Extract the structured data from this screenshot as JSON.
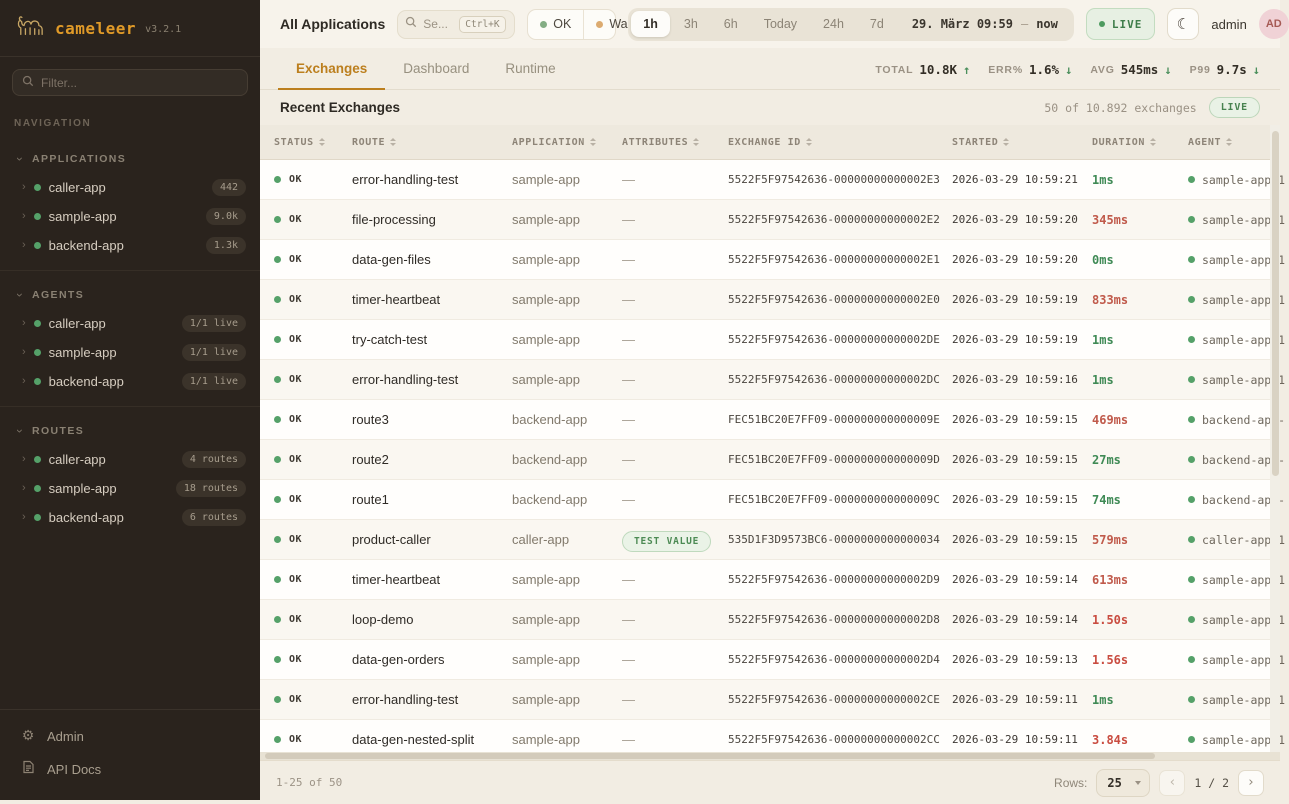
{
  "app": {
    "name": "cameleer",
    "version": "v3.2.1"
  },
  "colors": {
    "accent_orange": "#e09a28",
    "ok_green": "#55a169",
    "warn_amber": "#dcab70",
    "live_green": "#3e7d4a",
    "duration": {
      "fast": "#3f8a55",
      "medium": "#c05a4b",
      "slow": "#c94c40"
    }
  },
  "sidebar": {
    "filter_placeholder": "Filter...",
    "nav_label": "NAVIGATION",
    "sections": [
      {
        "label": "APPLICATIONS",
        "items": [
          {
            "name": "caller-app",
            "badge": "442"
          },
          {
            "name": "sample-app",
            "badge": "9.0k"
          },
          {
            "name": "backend-app",
            "badge": "1.3k"
          }
        ]
      },
      {
        "label": "AGENTS",
        "items": [
          {
            "name": "caller-app",
            "badge": "1/1 live"
          },
          {
            "name": "sample-app",
            "badge": "1/1 live"
          },
          {
            "name": "backend-app",
            "badge": "1/1 live"
          }
        ]
      },
      {
        "label": "ROUTES",
        "items": [
          {
            "name": "caller-app",
            "badge": "4 routes"
          },
          {
            "name": "sample-app",
            "badge": "18 routes"
          },
          {
            "name": "backend-app",
            "badge": "6 routes"
          }
        ]
      }
    ],
    "footer_items": [
      {
        "label": "Admin"
      },
      {
        "label": "API Docs"
      }
    ]
  },
  "topbar": {
    "scope_title": "All Applications",
    "search": {
      "placeholder": "Se...",
      "shortcut": "Ctrl+K"
    },
    "status_filters": [
      {
        "label": "OK",
        "color": "#84ad84"
      },
      {
        "label": "Wa",
        "color": "#dcab70"
      }
    ],
    "time_ranges": [
      "1h",
      "3h",
      "6h",
      "Today",
      "24h",
      "7d"
    ],
    "active_range": "1h",
    "date_range": {
      "from": "29. März 09:59",
      "sep": "—",
      "to": "now"
    },
    "live_label": "LIVE",
    "user": {
      "name": "admin",
      "initials": "AD"
    }
  },
  "tabs": [
    {
      "label": "Exchanges",
      "active": true
    },
    {
      "label": "Dashboard",
      "active": false
    },
    {
      "label": "Runtime",
      "active": false
    }
  ],
  "stats": [
    {
      "label": "TOTAL",
      "value": "10.8K",
      "dir": "up"
    },
    {
      "label": "ERR%",
      "value": "1.6%",
      "dir": "down"
    },
    {
      "label": "AVG",
      "value": "545ms",
      "dir": "down"
    },
    {
      "label": "P99",
      "value": "9.7s",
      "dir": "down"
    }
  ],
  "exchanges": {
    "title": "Recent Exchanges",
    "count_text": "50 of 10.892 exchanges",
    "live_label": "LIVE",
    "empty_attribute": "—",
    "columns": [
      "STATUS",
      "ROUTE",
      "APPLICATION",
      "ATTRIBUTES",
      "EXCHANGE ID",
      "STARTED",
      "DURATION",
      "AGENT"
    ],
    "rows": [
      {
        "status": "OK",
        "route": "error-handling-test",
        "application": "sample-app",
        "attribute": null,
        "exchange_id": "5522F5F97542636-00000000000002E3",
        "started": "2026-03-29 10:59:21",
        "duration": "1ms",
        "level": "fast",
        "agent": "sample-app-1"
      },
      {
        "status": "OK",
        "route": "file-processing",
        "application": "sample-app",
        "attribute": null,
        "exchange_id": "5522F5F97542636-00000000000002E2",
        "started": "2026-03-29 10:59:20",
        "duration": "345ms",
        "level": "medium",
        "agent": "sample-app-1"
      },
      {
        "status": "OK",
        "route": "data-gen-files",
        "application": "sample-app",
        "attribute": null,
        "exchange_id": "5522F5F97542636-00000000000002E1",
        "started": "2026-03-29 10:59:20",
        "duration": "0ms",
        "level": "fast",
        "agent": "sample-app-1"
      },
      {
        "status": "OK",
        "route": "timer-heartbeat",
        "application": "sample-app",
        "attribute": null,
        "exchange_id": "5522F5F97542636-00000000000002E0",
        "started": "2026-03-29 10:59:19",
        "duration": "833ms",
        "level": "medium",
        "agent": "sample-app-1"
      },
      {
        "status": "OK",
        "route": "try-catch-test",
        "application": "sample-app",
        "attribute": null,
        "exchange_id": "5522F5F97542636-00000000000002DE",
        "started": "2026-03-29 10:59:19",
        "duration": "1ms",
        "level": "fast",
        "agent": "sample-app-1"
      },
      {
        "status": "OK",
        "route": "error-handling-test",
        "application": "sample-app",
        "attribute": null,
        "exchange_id": "5522F5F97542636-00000000000002DC",
        "started": "2026-03-29 10:59:16",
        "duration": "1ms",
        "level": "fast",
        "agent": "sample-app-1"
      },
      {
        "status": "OK",
        "route": "route3",
        "application": "backend-app",
        "attribute": null,
        "exchange_id": "FEC51BC20E7FF09-000000000000009E",
        "started": "2026-03-29 10:59:15",
        "duration": "469ms",
        "level": "medium",
        "agent": "backend-app-"
      },
      {
        "status": "OK",
        "route": "route2",
        "application": "backend-app",
        "attribute": null,
        "exchange_id": "FEC51BC20E7FF09-000000000000009D",
        "started": "2026-03-29 10:59:15",
        "duration": "27ms",
        "level": "fast",
        "agent": "backend-app-"
      },
      {
        "status": "OK",
        "route": "route1",
        "application": "backend-app",
        "attribute": null,
        "exchange_id": "FEC51BC20E7FF09-000000000000009C",
        "started": "2026-03-29 10:59:15",
        "duration": "74ms",
        "level": "fast",
        "agent": "backend-app-"
      },
      {
        "status": "OK",
        "route": "product-caller",
        "application": "caller-app",
        "attribute": "TEST VALUE",
        "exchange_id": "535D1F3D9573BC6-0000000000000034",
        "started": "2026-03-29 10:59:15",
        "duration": "579ms",
        "level": "medium",
        "agent": "caller-app-1"
      },
      {
        "status": "OK",
        "route": "timer-heartbeat",
        "application": "sample-app",
        "attribute": null,
        "exchange_id": "5522F5F97542636-00000000000002D9",
        "started": "2026-03-29 10:59:14",
        "duration": "613ms",
        "level": "medium",
        "agent": "sample-app-1"
      },
      {
        "status": "OK",
        "route": "loop-demo",
        "application": "sample-app",
        "attribute": null,
        "exchange_id": "5522F5F97542636-00000000000002D8",
        "started": "2026-03-29 10:59:14",
        "duration": "1.50s",
        "level": "slow",
        "agent": "sample-app-1"
      },
      {
        "status": "OK",
        "route": "data-gen-orders",
        "application": "sample-app",
        "attribute": null,
        "exchange_id": "5522F5F97542636-00000000000002D4",
        "started": "2026-03-29 10:59:13",
        "duration": "1.56s",
        "level": "slow",
        "agent": "sample-app-1"
      },
      {
        "status": "OK",
        "route": "error-handling-test",
        "application": "sample-app",
        "attribute": null,
        "exchange_id": "5522F5F97542636-00000000000002CE",
        "started": "2026-03-29 10:59:11",
        "duration": "1ms",
        "level": "fast",
        "agent": "sample-app-1"
      },
      {
        "status": "OK",
        "route": "data-gen-nested-split",
        "application": "sample-app",
        "attribute": null,
        "exchange_id": "5522F5F97542636-00000000000002CC",
        "started": "2026-03-29 10:59:11",
        "duration": "3.84s",
        "level": "slow",
        "agent": "sample-app-1"
      }
    ]
  },
  "pagefoot": {
    "range_text": "1-25 of 50",
    "rows_label": "Rows:",
    "rows_value": "25",
    "prev": "‹",
    "page_text": "1 / 2",
    "next": "›"
  }
}
